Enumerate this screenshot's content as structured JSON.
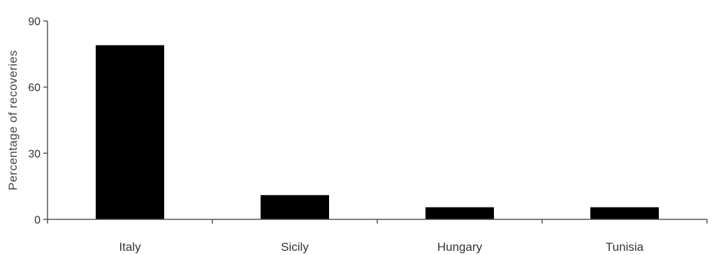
{
  "chart_data": {
    "type": "bar",
    "categories": [
      "Italy",
      "Sicily",
      "Hungary",
      "Tunisia"
    ],
    "values": [
      79,
      11,
      5.5,
      5.5
    ],
    "ylabel": "Percentage of recoveries",
    "xlabel": "",
    "ylim": [
      0,
      90
    ],
    "yticks": [
      0,
      30,
      60,
      90
    ],
    "grid": false,
    "legend": "none",
    "colors": {
      "bar": "#000000",
      "axis": "#555555"
    }
  }
}
